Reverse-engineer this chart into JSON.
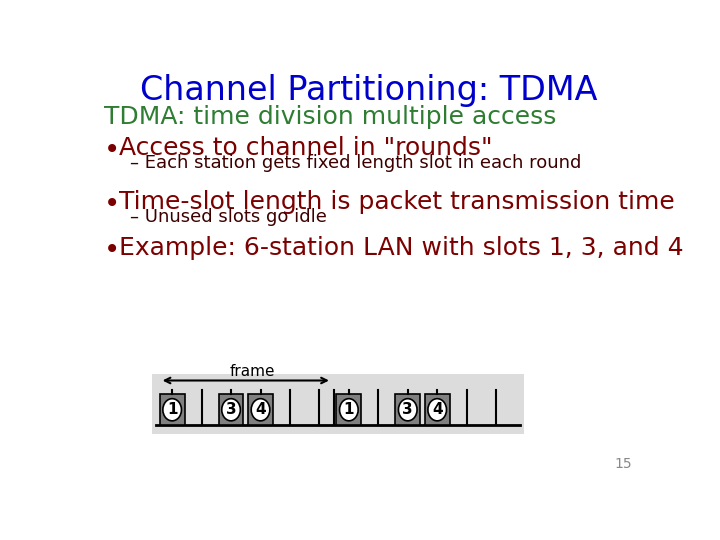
{
  "title": "Channel Partitioning: TDMA",
  "title_color": "#0000CC",
  "title_fontsize": 24,
  "subtitle": "TDMA: time division multiple access",
  "subtitle_color": "#2E7D32",
  "subtitle_fontsize": 18,
  "bullet_color": "#7B0000",
  "bullet_fontsize": 18,
  "sub_bullet_fontsize": 13,
  "sub_bullet_color": "#3D0000",
  "bullets": [
    {
      "text": "Access to channel in \"rounds\"",
      "sub": "– Each station gets fixed length slot in each round"
    },
    {
      "text": "Time-slot length is packet transmission time",
      "sub": "– Unused slots go idle"
    },
    {
      "text": "Example: 6-station LAN with slots 1, 3, and 4",
      "sub": null
    }
  ],
  "diagram_bg": "#DCDCDC",
  "slot_filled_color": "#808080",
  "page_number": "15"
}
